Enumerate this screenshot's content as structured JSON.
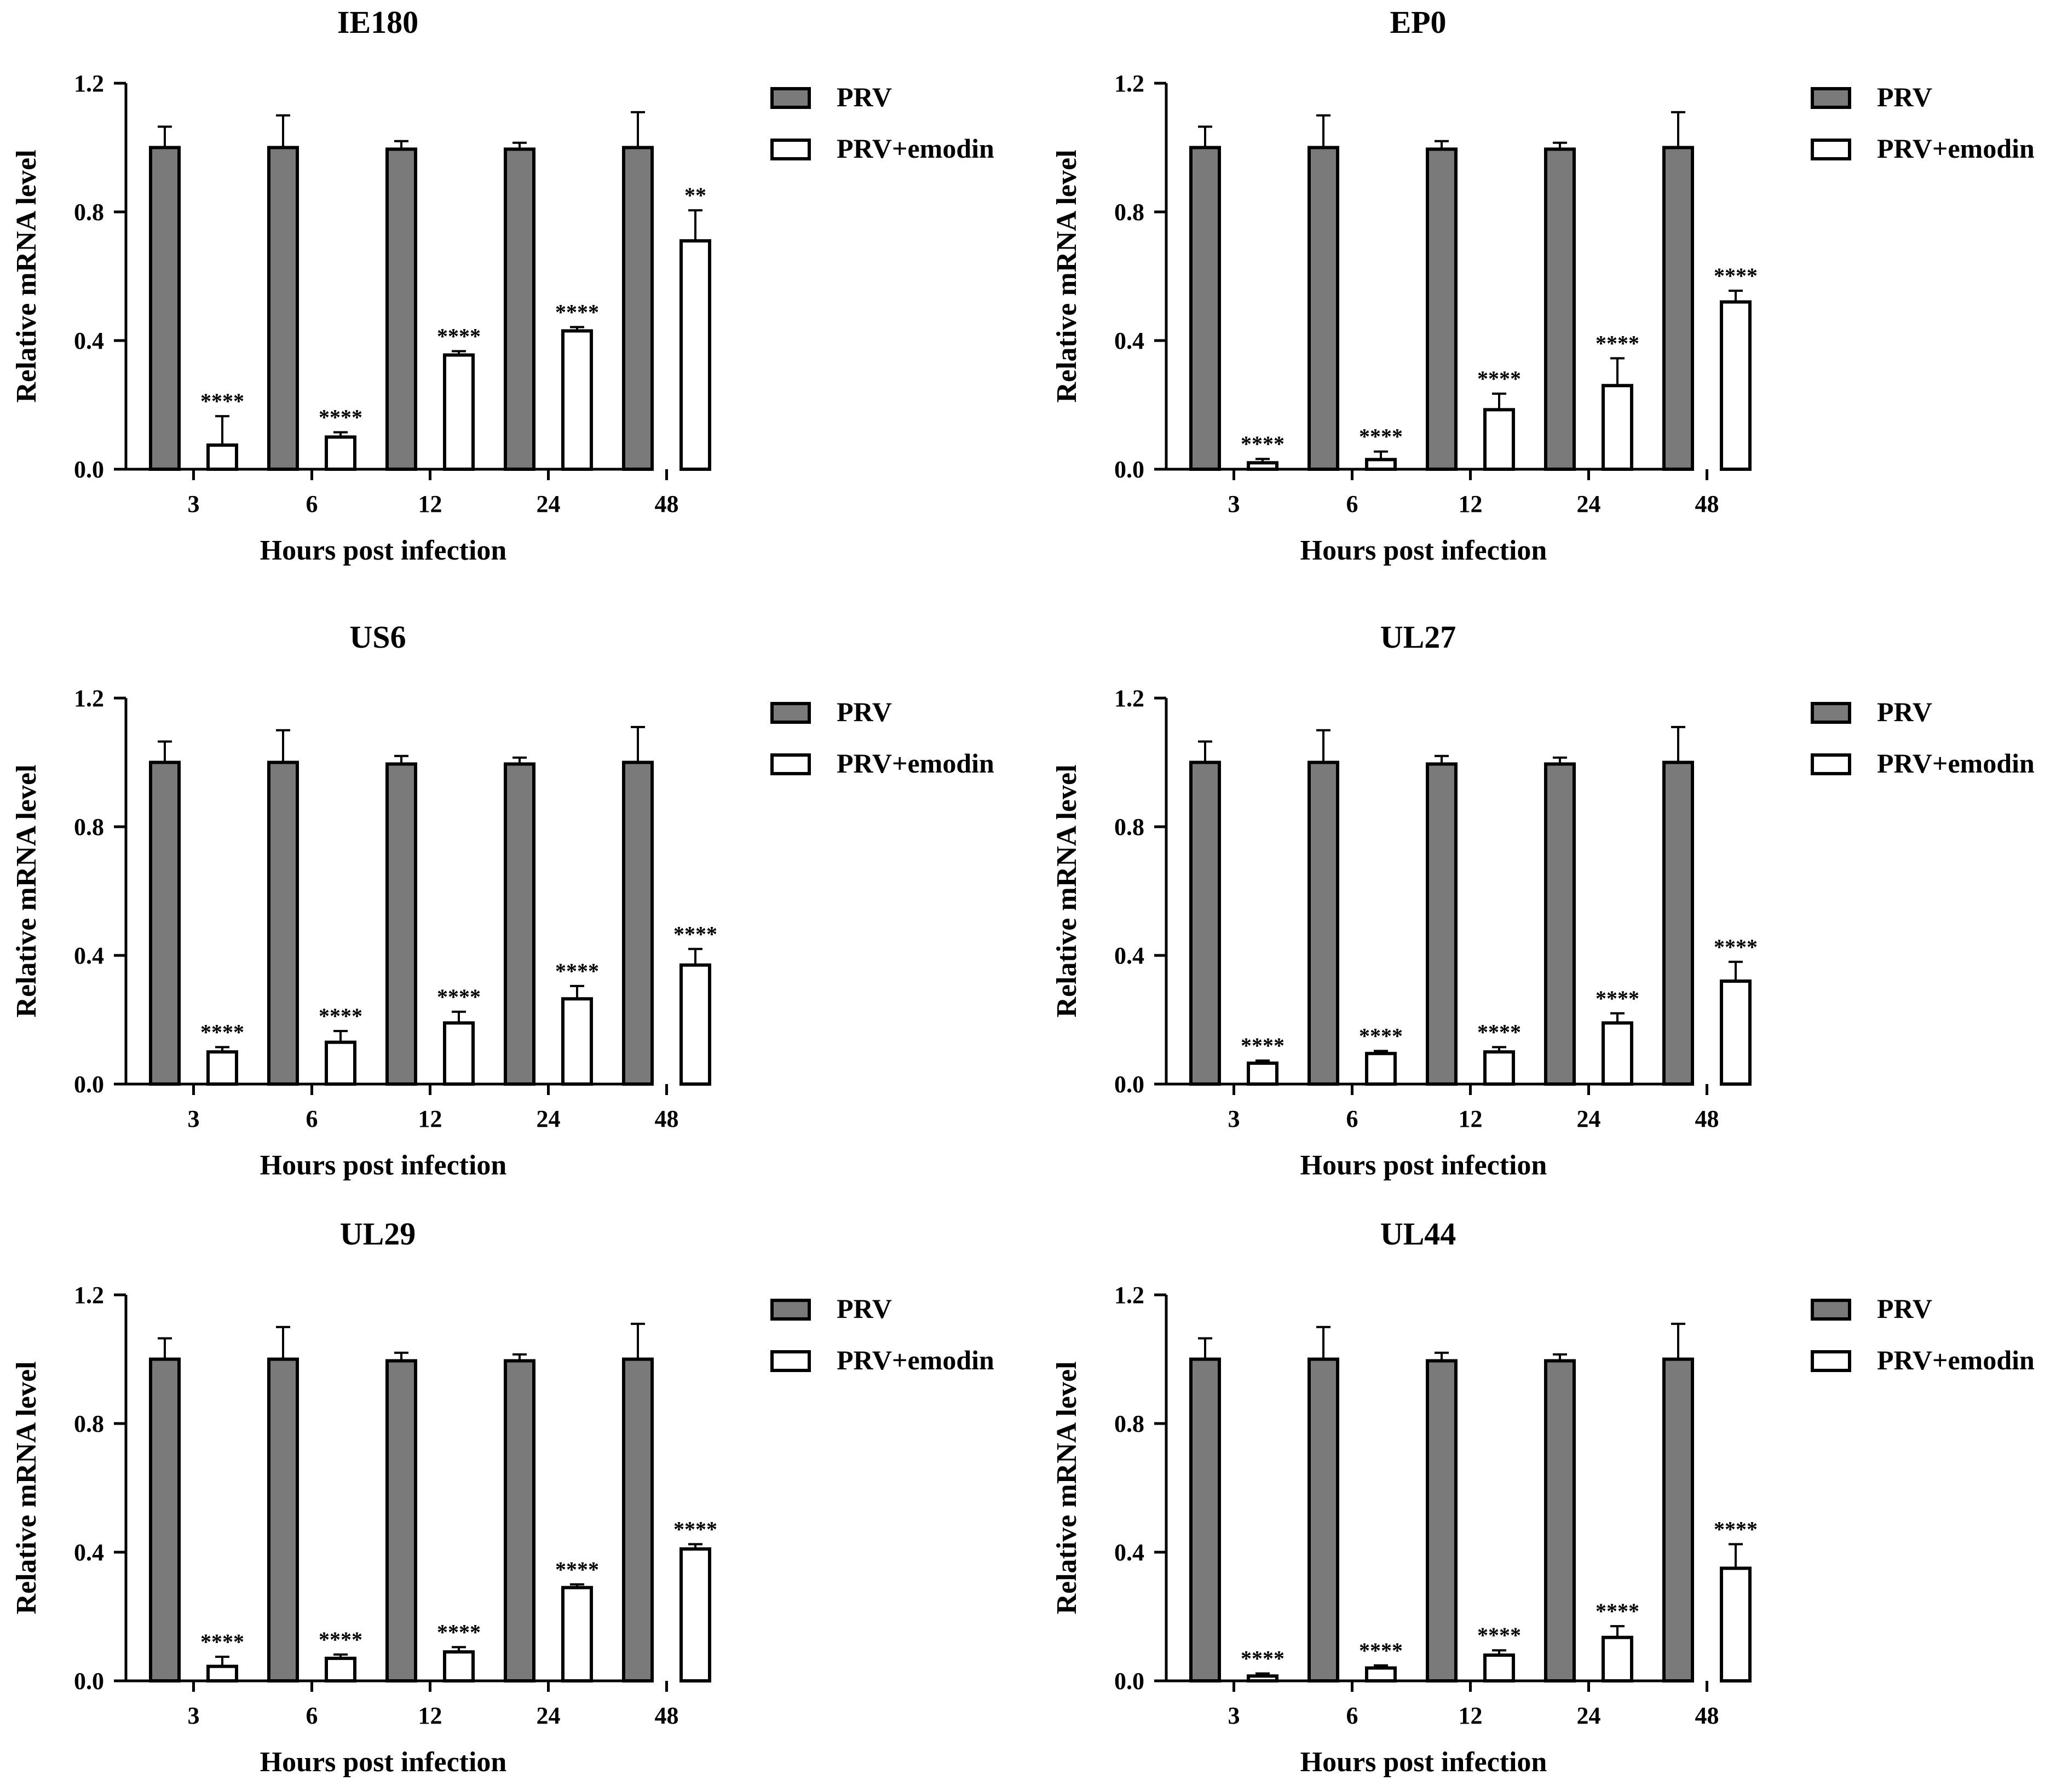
{
  "colors": {
    "prv_fill": "#7a7a7a",
    "emodin_fill": "#ffffff",
    "stroke": "#000000",
    "background": "#ffffff"
  },
  "chart_data": [
    {
      "type": "bar",
      "title": "IE180",
      "xlabel": "Hours post infection",
      "ylabel": "Relative mRNA level",
      "categories": [
        "3",
        "6",
        "12",
        "24",
        "48"
      ],
      "ylim": [
        0,
        1.2
      ],
      "yticks": [
        "0.0",
        "0.4",
        "0.8",
        "1.2"
      ],
      "legend": "right",
      "series": [
        {
          "name": "PRV",
          "values": [
            1.0,
            1.0,
            0.995,
            0.995,
            1.0
          ],
          "errors": [
            0.065,
            0.1,
            0.025,
            0.02,
            0.11
          ]
        },
        {
          "name": "PRV+emodin",
          "values": [
            0.075,
            0.1,
            0.355,
            0.43,
            0.71
          ],
          "errors": [
            0.09,
            0.015,
            0.012,
            0.012,
            0.095
          ],
          "annotations": [
            "****",
            "****",
            "****",
            "****",
            "**"
          ]
        }
      ]
    },
    {
      "type": "bar",
      "title": "EP0",
      "xlabel": "Hours post infection",
      "ylabel": "Relative mRNA level",
      "categories": [
        "3",
        "6",
        "12",
        "24",
        "48"
      ],
      "ylim": [
        0,
        1.2
      ],
      "yticks": [
        "0.0",
        "0.4",
        "0.8",
        "1.2"
      ],
      "legend": "right",
      "series": [
        {
          "name": "PRV",
          "values": [
            1.0,
            1.0,
            0.995,
            0.995,
            1.0
          ],
          "errors": [
            0.065,
            0.1,
            0.025,
            0.02,
            0.11
          ]
        },
        {
          "name": "PRV+emodin",
          "values": [
            0.02,
            0.03,
            0.185,
            0.26,
            0.52
          ],
          "errors": [
            0.012,
            0.025,
            0.05,
            0.085,
            0.035
          ],
          "annotations": [
            "****",
            "****",
            "****",
            "****",
            "****"
          ]
        }
      ]
    },
    {
      "type": "bar",
      "title": "US6",
      "xlabel": "Hours post infection",
      "ylabel": "Relative mRNA level",
      "categories": [
        "3",
        "6",
        "12",
        "24",
        "48"
      ],
      "ylim": [
        0,
        1.2
      ],
      "yticks": [
        "0.0",
        "0.4",
        "0.8",
        "1.2"
      ],
      "legend": "right",
      "series": [
        {
          "name": "PRV",
          "values": [
            1.0,
            1.0,
            0.995,
            0.995,
            1.0
          ],
          "errors": [
            0.065,
            0.1,
            0.025,
            0.02,
            0.11
          ]
        },
        {
          "name": "PRV+emodin",
          "values": [
            0.1,
            0.13,
            0.19,
            0.265,
            0.37
          ],
          "errors": [
            0.015,
            0.035,
            0.035,
            0.04,
            0.05
          ],
          "annotations": [
            "****",
            "****",
            "****",
            "****",
            "****"
          ]
        }
      ]
    },
    {
      "type": "bar",
      "title": "UL27",
      "xlabel": "Hours post infection",
      "ylabel": "Relative mRNA level",
      "categories": [
        "3",
        "6",
        "12",
        "24",
        "48"
      ],
      "ylim": [
        0,
        1.2
      ],
      "yticks": [
        "0.0",
        "0.4",
        "0.8",
        "1.2"
      ],
      "legend": "right",
      "series": [
        {
          "name": "PRV",
          "values": [
            1.0,
            1.0,
            0.995,
            0.995,
            1.0
          ],
          "errors": [
            0.065,
            0.1,
            0.025,
            0.02,
            0.11
          ]
        },
        {
          "name": "PRV+emodin",
          "values": [
            0.065,
            0.095,
            0.1,
            0.19,
            0.32
          ],
          "errors": [
            0.008,
            0.008,
            0.015,
            0.03,
            0.06
          ],
          "annotations": [
            "****",
            "****",
            "****",
            "****",
            "****"
          ]
        }
      ]
    },
    {
      "type": "bar",
      "title": "UL29",
      "xlabel": "Hours post infection",
      "ylabel": "Relative mRNA level",
      "categories": [
        "3",
        "6",
        "12",
        "24",
        "48"
      ],
      "ylim": [
        0,
        1.2
      ],
      "yticks": [
        "0.0",
        "0.4",
        "0.8",
        "1.2"
      ],
      "legend": "right",
      "series": [
        {
          "name": "PRV",
          "values": [
            1.0,
            1.0,
            0.995,
            0.995,
            1.0
          ],
          "errors": [
            0.065,
            0.1,
            0.025,
            0.02,
            0.11
          ]
        },
        {
          "name": "PRV+emodin",
          "values": [
            0.045,
            0.07,
            0.09,
            0.29,
            0.41
          ],
          "errors": [
            0.03,
            0.012,
            0.015,
            0.01,
            0.015
          ],
          "annotations": [
            "****",
            "****",
            "****",
            "****",
            "****"
          ]
        }
      ]
    },
    {
      "type": "bar",
      "title": "UL44",
      "xlabel": "Hours post infection",
      "ylabel": "Relative mRNA level",
      "categories": [
        "3",
        "6",
        "12",
        "24",
        "48"
      ],
      "ylim": [
        0,
        1.2
      ],
      "yticks": [
        "0.0",
        "0.4",
        "0.8",
        "1.2"
      ],
      "legend": "right",
      "series": [
        {
          "name": "PRV",
          "values": [
            1.0,
            1.0,
            0.995,
            0.995,
            1.0
          ],
          "errors": [
            0.065,
            0.1,
            0.025,
            0.02,
            0.11
          ]
        },
        {
          "name": "PRV+emodin",
          "values": [
            0.015,
            0.04,
            0.08,
            0.135,
            0.35
          ],
          "errors": [
            0.008,
            0.008,
            0.015,
            0.035,
            0.075
          ],
          "annotations": [
            "****",
            "****",
            "****",
            "****",
            "****"
          ]
        }
      ]
    }
  ]
}
